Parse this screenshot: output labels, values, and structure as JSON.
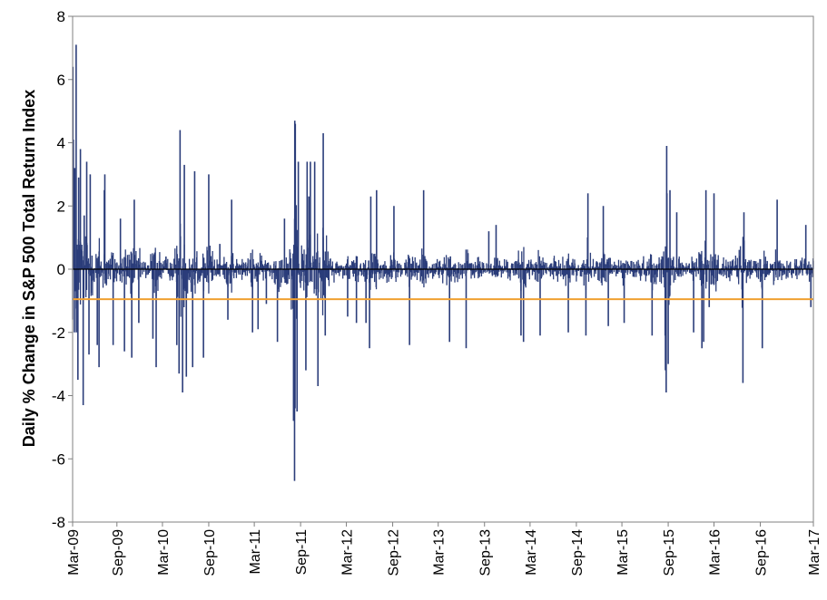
{
  "chart_data": {
    "type": "bar",
    "title": "",
    "xlabel": "",
    "ylabel": "Daily % Change in S&P 500 Total Return Index",
    "xlim": [
      "2009-03-09",
      "2017-03-31"
    ],
    "ylim": [
      -8,
      8
    ],
    "y_ticks": [
      8,
      6,
      4,
      2,
      0,
      -2,
      -4,
      -6,
      -8
    ],
    "x_tick_labels": [
      "Mar-09",
      "Sep-09",
      "Mar-10",
      "Sep-10",
      "Mar-11",
      "Sep-11",
      "Mar-12",
      "Sep-12",
      "Mar-13",
      "Sep-13",
      "Mar-14",
      "Sep-14",
      "Mar-15",
      "Sep-15",
      "Mar-16",
      "Sep-16",
      "Mar-17"
    ],
    "x_tick_dates": [
      "2009-03-09",
      "2009-09-01",
      "2010-03-01",
      "2010-09-01",
      "2011-03-01",
      "2011-09-01",
      "2012-03-01",
      "2012-09-01",
      "2013-03-01",
      "2013-09-01",
      "2014-03-01",
      "2014-09-01",
      "2015-03-01",
      "2015-09-01",
      "2016-03-01",
      "2016-09-01",
      "2017-03-31"
    ],
    "grid": false,
    "legend": "none",
    "reference_line": {
      "y": -0.95
    },
    "series": [
      {
        "color": "#2b3d7a",
        "points": [
          [
            "2009-03-10",
            6.4
          ],
          [
            "2009-03-12",
            4.1
          ],
          [
            "2009-03-16",
            -2.0
          ],
          [
            "2009-03-17",
            3.2
          ],
          [
            "2009-03-23",
            7.1
          ],
          [
            "2009-03-24",
            -2.0
          ],
          [
            "2009-03-30",
            -3.5
          ],
          [
            "2009-04-02",
            2.9
          ],
          [
            "2009-04-09",
            3.8
          ],
          [
            "2009-04-20",
            -4.3
          ],
          [
            "2009-04-24",
            1.7
          ],
          [
            "2009-05-04",
            3.4
          ],
          [
            "2009-05-13",
            -2.7
          ],
          [
            "2009-05-18",
            3.0
          ],
          [
            "2009-06-15",
            -2.4
          ],
          [
            "2009-06-22",
            -3.1
          ],
          [
            "2009-07-13",
            2.5
          ],
          [
            "2009-07-15",
            3.0
          ],
          [
            "2009-08-17",
            -2.4
          ],
          [
            "2009-09-15",
            1.6
          ],
          [
            "2009-10-01",
            -2.6
          ],
          [
            "2009-10-30",
            -2.8
          ],
          [
            "2009-11-09",
            2.2
          ],
          [
            "2009-11-27",
            -1.7
          ],
          [
            "2010-01-22",
            -2.2
          ],
          [
            "2010-02-04",
            -3.1
          ],
          [
            "2010-03-15",
            0.4
          ],
          [
            "2010-04-27",
            -2.4
          ],
          [
            "2010-05-06",
            -3.3
          ],
          [
            "2010-05-10",
            4.4
          ],
          [
            "2010-05-20",
            -3.9
          ],
          [
            "2010-05-27",
            3.3
          ],
          [
            "2010-06-04",
            -3.4
          ],
          [
            "2010-06-29",
            -3.1
          ],
          [
            "2010-07-07",
            3.1
          ],
          [
            "2010-08-11",
            -2.8
          ],
          [
            "2010-09-01",
            3.0
          ],
          [
            "2010-10-15",
            0.8
          ],
          [
            "2010-11-16",
            -1.6
          ],
          [
            "2010-12-01",
            2.2
          ],
          [
            "2011-02-22",
            -2.0
          ],
          [
            "2011-03-16",
            -1.9
          ],
          [
            "2011-04-18",
            -1.1
          ],
          [
            "2011-06-01",
            -2.3
          ],
          [
            "2011-06-29",
            1.6
          ],
          [
            "2011-08-04",
            -4.8
          ],
          [
            "2011-08-08",
            -6.7
          ],
          [
            "2011-08-09",
            4.7
          ],
          [
            "2011-08-10",
            -4.4
          ],
          [
            "2011-08-11",
            4.6
          ],
          [
            "2011-08-18",
            -4.5
          ],
          [
            "2011-08-23",
            3.4
          ],
          [
            "2011-09-22",
            -3.2
          ],
          [
            "2011-09-27",
            3.4
          ],
          [
            "2011-10-04",
            2.3
          ],
          [
            "2011-10-10",
            3.4
          ],
          [
            "2011-10-27",
            3.4
          ],
          [
            "2011-11-09",
            -3.7
          ],
          [
            "2011-11-30",
            4.3
          ],
          [
            "2011-12-08",
            -2.1
          ],
          [
            "2012-03-06",
            -1.5
          ],
          [
            "2012-04-10",
            -1.7
          ],
          [
            "2012-05-18",
            -1.7
          ],
          [
            "2012-06-01",
            -2.5
          ],
          [
            "2012-06-06",
            2.3
          ],
          [
            "2012-06-29",
            2.5
          ],
          [
            "2012-09-06",
            2.0
          ],
          [
            "2012-11-07",
            -2.4
          ],
          [
            "2013-01-02",
            2.5
          ],
          [
            "2013-04-15",
            -2.3
          ],
          [
            "2013-06-20",
            -2.5
          ],
          [
            "2013-09-18",
            1.2
          ],
          [
            "2013-10-17",
            1.4
          ],
          [
            "2014-01-24",
            -2.1
          ],
          [
            "2014-02-03",
            -2.3
          ],
          [
            "2014-04-10",
            -2.1
          ],
          [
            "2014-07-31",
            -2.0
          ],
          [
            "2014-10-09",
            -2.1
          ],
          [
            "2014-10-17",
            2.4
          ],
          [
            "2014-12-17",
            2.0
          ],
          [
            "2015-01-06",
            -1.8
          ],
          [
            "2015-03-10",
            -1.7
          ],
          [
            "2015-06-29",
            -2.1
          ],
          [
            "2015-08-20",
            -2.1
          ],
          [
            "2015-08-21",
            -3.2
          ],
          [
            "2015-08-24",
            -3.9
          ],
          [
            "2015-08-26",
            3.9
          ],
          [
            "2015-08-27",
            2.4
          ],
          [
            "2015-09-01",
            -3.0
          ],
          [
            "2015-09-08",
            2.5
          ],
          [
            "2015-10-05",
            1.8
          ],
          [
            "2015-12-11",
            -2.0
          ],
          [
            "2016-01-13",
            -2.5
          ],
          [
            "2016-01-20",
            -2.3
          ],
          [
            "2016-01-29",
            2.5
          ],
          [
            "2016-02-11",
            -1.2
          ],
          [
            "2016-03-01",
            2.4
          ],
          [
            "2016-06-24",
            -3.6
          ],
          [
            "2016-06-28",
            1.8
          ],
          [
            "2016-09-09",
            -2.5
          ],
          [
            "2016-11-07",
            2.2
          ],
          [
            "2017-03-01",
            1.4
          ],
          [
            "2017-03-21",
            -1.2
          ]
        ]
      }
    ]
  }
}
